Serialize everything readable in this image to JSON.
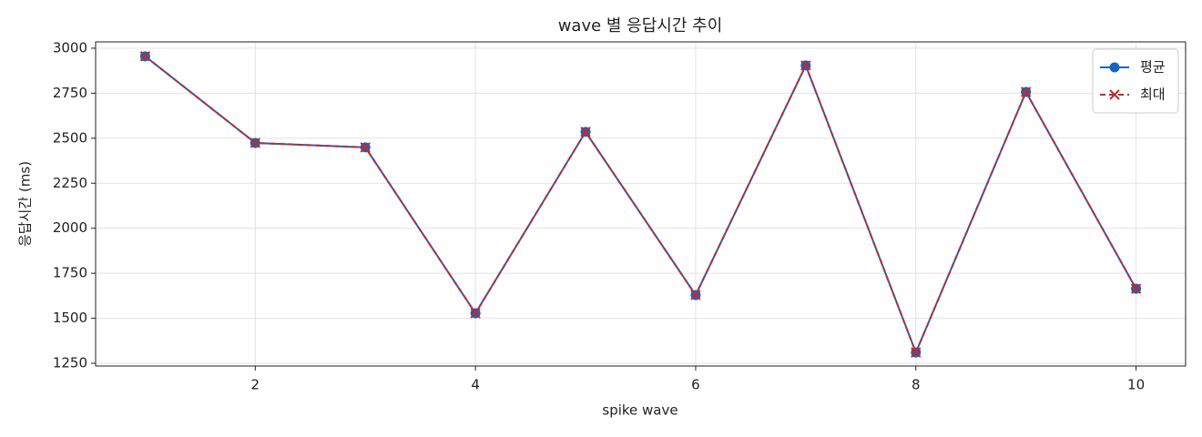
{
  "chart_data": {
    "type": "line",
    "title": "wave 별 응답시간 추이",
    "x_label": "spike wave",
    "y_label": "응답시간 (ms)",
    "x": [
      1,
      2,
      3,
      4,
      5,
      6,
      7,
      8,
      9,
      10
    ],
    "series": [
      {
        "name": "평균",
        "color": "#1565c0",
        "marker": "circle",
        "dashed": false,
        "values": [
          2955,
          2474,
          2449,
          1528,
          2535,
          1629,
          2904,
          1310,
          2757,
          1664
        ]
      },
      {
        "name": "최대",
        "color": "#c62828",
        "marker": "x",
        "dashed": true,
        "values": [
          2955,
          2474,
          2449,
          1528,
          2535,
          1629,
          2904,
          1310,
          2757,
          1664
        ]
      }
    ],
    "xlim": [
      0.55,
      10.45
    ],
    "ylim": [
      1235,
      3035
    ],
    "xticks": [
      2,
      4,
      6,
      8,
      10
    ],
    "yticks": [
      1250,
      1500,
      1750,
      2000,
      2250,
      2500,
      2750,
      3000
    ],
    "grid": true,
    "legend": "upper right"
  }
}
